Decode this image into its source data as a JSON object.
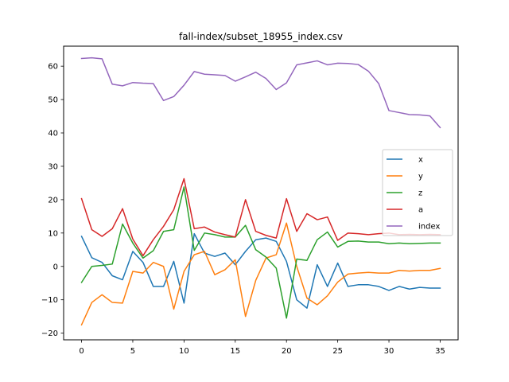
{
  "chart_data": {
    "type": "line",
    "title": "fall-index/subset_18955_index.csv",
    "xlabel": "",
    "ylabel": "",
    "xlim": [
      -1.75,
      36.75
    ],
    "ylim": [
      -22,
      66
    ],
    "xticks": [
      0,
      5,
      10,
      15,
      20,
      25,
      30,
      35
    ],
    "yticks": [
      -20,
      -10,
      0,
      10,
      20,
      30,
      40,
      50,
      60
    ],
    "grid": false,
    "legend_position": "center-right",
    "x": [
      0,
      1,
      2,
      3,
      4,
      5,
      6,
      7,
      8,
      9,
      10,
      11,
      12,
      13,
      14,
      15,
      16,
      17,
      18,
      19,
      20,
      21,
      22,
      23,
      24,
      25,
      26,
      27,
      28,
      29,
      30,
      31,
      32,
      33,
      34,
      35
    ],
    "series": [
      {
        "name": "x",
        "color": "#1f77b4",
        "values": [
          9,
          2.6,
          1.2,
          -2.8,
          -4,
          4.5,
          1.2,
          -6,
          -6,
          1.5,
          -11,
          9.8,
          4,
          3,
          4,
          0.5,
          4.5,
          8,
          8.5,
          7.5,
          1.5,
          -10,
          -12.5,
          0.5,
          -6,
          1,
          -6,
          -5.5,
          -5.5,
          -6,
          -7.2,
          -6,
          -6.8,
          -6.3,
          -6.5,
          -6.5
        ]
      },
      {
        "name": "y",
        "color": "#ff7f0e",
        "values": [
          -17.5,
          -10.8,
          -8.5,
          -10.8,
          -11,
          -1.5,
          -2,
          1.2,
          0,
          -12.8,
          -1.5,
          3.5,
          4.5,
          -2.5,
          -1,
          2,
          -15,
          -4.2,
          2.5,
          3.5,
          13,
          0,
          -9.5,
          -11.5,
          -8.8,
          -4.7,
          -2.3,
          -2,
          -1.8,
          -2,
          -2,
          -1.2,
          -1.4,
          -1.2,
          -1.2,
          -0.6
        ]
      },
      {
        "name": "z",
        "color": "#2ca02c",
        "values": [
          -4.8,
          0,
          0.3,
          0.7,
          12.7,
          7,
          2.5,
          4.7,
          10.5,
          11,
          23.8,
          4.8,
          10,
          9.5,
          8.8,
          8.8,
          12.3,
          5,
          2.8,
          -0.5,
          -15.5,
          2.2,
          1.8,
          8,
          10.3,
          5.8,
          7.5,
          7.6,
          7.3,
          7.3,
          6.8,
          7,
          6.8,
          6.9,
          7,
          7
        ]
      },
      {
        "name": "a",
        "color": "#d62728",
        "values": [
          20.3,
          11,
          9,
          11.3,
          17.3,
          8.2,
          3.2,
          8,
          12,
          17,
          26.3,
          11.3,
          11.8,
          10.3,
          9.5,
          8.8,
          20,
          10.5,
          9.3,
          8.5,
          20.3,
          10.5,
          15.8,
          14,
          14.8,
          7.8,
          10,
          9.8,
          9.5,
          9.8,
          10,
          9.5,
          9.6,
          9.5,
          9.6,
          9.5
        ]
      },
      {
        "name": "index",
        "color": "#9467bd",
        "values": [
          62.3,
          62.5,
          62.2,
          54.6,
          54.1,
          55.1,
          54.9,
          54.8,
          49.7,
          50.9,
          54.3,
          58.4,
          57.6,
          57.4,
          57.2,
          55.5,
          56.8,
          58.2,
          56.3,
          53,
          55,
          60.4,
          61,
          61.6,
          60.4,
          60.9,
          60.8,
          60.5,
          58.5,
          54.8,
          46.7,
          46.1,
          45.5,
          45.4,
          45.1,
          41.6
        ]
      }
    ]
  }
}
